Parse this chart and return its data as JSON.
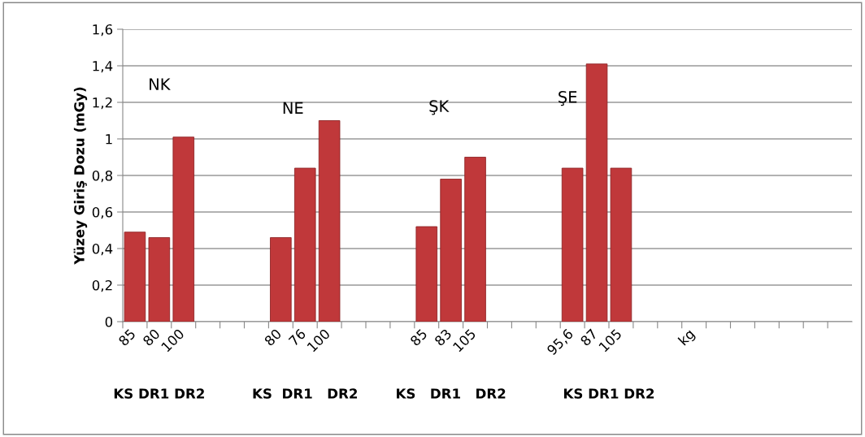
{
  "chart_data": {
    "type": "bar",
    "ylabel": "Yüzey Giriş Dozu (mGy)",
    "categories": [
      "85",
      "80",
      "100",
      null,
      null,
      null,
      "80",
      "76",
      "100",
      null,
      null,
      null,
      "85",
      "83",
      "105",
      null,
      null,
      null,
      "95,6",
      "87",
      "105",
      null,
      null,
      "kg",
      null,
      null,
      null,
      null,
      null,
      null
    ],
    "values": [
      0.49,
      0.46,
      1.01,
      null,
      null,
      null,
      0.46,
      0.84,
      1.1,
      null,
      null,
      null,
      0.52,
      0.78,
      0.9,
      null,
      null,
      null,
      0.84,
      1.41,
      0.84,
      null,
      null,
      null,
      null,
      null,
      null,
      null,
      null,
      null
    ],
    "color": "#c0383a",
    "ylim": [
      0,
      1.6
    ],
    "yticks": [
      {
        "value": 0,
        "label": "0"
      },
      {
        "value": 0.2,
        "label": "0,2"
      },
      {
        "value": 0.4,
        "label": "0,4"
      },
      {
        "value": 0.6,
        "label": "0,6"
      },
      {
        "value": 0.8,
        "label": "0,8"
      },
      {
        "value": 1,
        "label": "1"
      },
      {
        "value": 1.2,
        "label": "1,2"
      },
      {
        "value": 1.4,
        "label": "1,4"
      },
      {
        "value": 1.6,
        "label": "1,6"
      }
    ],
    "grid": "y",
    "annotations": [
      "NK",
      "NE",
      "ŞK",
      "ŞE",
      "KS DR1 DR2",
      "KS  DR1   DR2",
      "KS   DR1   DR2",
      "KS DR1 DR2"
    ]
  }
}
